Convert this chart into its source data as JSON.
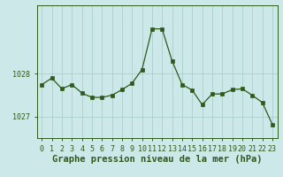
{
  "x": [
    0,
    1,
    2,
    3,
    4,
    5,
    6,
    7,
    8,
    9,
    10,
    11,
    12,
    13,
    14,
    15,
    16,
    17,
    18,
    19,
    20,
    21,
    22,
    23
  ],
  "y": [
    1027.75,
    1027.9,
    1027.65,
    1027.75,
    1027.55,
    1027.45,
    1027.45,
    1027.5,
    1027.63,
    1027.78,
    1028.1,
    1029.05,
    1029.05,
    1028.3,
    1027.75,
    1027.62,
    1027.28,
    1027.53,
    1027.53,
    1027.63,
    1027.65,
    1027.5,
    1027.33,
    1026.82
  ],
  "line_color": "#2d5a1b",
  "marker": "s",
  "marker_size": 2.2,
  "line_width": 0.9,
  "bg_color": "#cce8e8",
  "grid_color": "#aacfcf",
  "xlabel": "Graphe pression niveau de la mer (hPa)",
  "xlabel_fontsize": 7.5,
  "ylabel_ticks": [
    1027,
    1028
  ],
  "ylim": [
    1026.5,
    1029.6
  ],
  "xlim": [
    -0.5,
    23.5
  ],
  "tick_fontsize": 6,
  "tick_color": "#2d5a1b"
}
